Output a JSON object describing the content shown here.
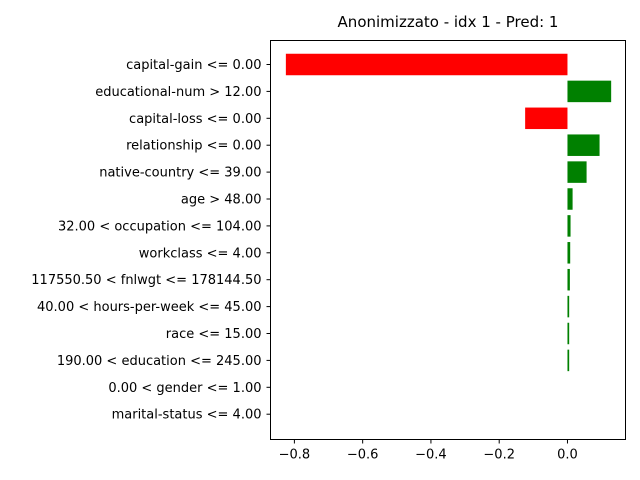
{
  "chart_data": {
    "type": "bar",
    "orientation": "horizontal",
    "title": "Anonimizzato - idx 1 - Pred: 1",
    "xlabel": "",
    "ylabel": "",
    "xlim": [
      -0.87,
      0.17
    ],
    "xticks": [
      -0.8,
      -0.6,
      -0.4,
      -0.2,
      0.0
    ],
    "xtick_labels": [
      "−0.8",
      "−0.6",
      "−0.4",
      "−0.2",
      "0.0"
    ],
    "grid": false,
    "legend": "none",
    "colors": {
      "positive": "#008000",
      "negative": "#ff0000"
    },
    "categories": [
      "capital-gain <= 0.00",
      "educational-num > 12.00",
      "capital-loss <= 0.00",
      "relationship <= 0.00",
      "native-country <= 39.00",
      "age > 48.00",
      "32.00 < occupation <= 104.00",
      "workclass <= 4.00",
      "117550.50 < fnlwgt <= 178144.50",
      "40.00 < hours-per-week <= 45.00",
      "race <= 15.00",
      "190.00 < education <= 245.00",
      "0.00 < gender <= 1.00",
      "marital-status <= 4.00"
    ],
    "values": [
      -0.825,
      0.128,
      -0.124,
      0.094,
      0.056,
      0.015,
      0.009,
      0.008,
      0.007,
      0.005,
      0.005,
      0.005,
      0.0,
      0.0
    ]
  }
}
